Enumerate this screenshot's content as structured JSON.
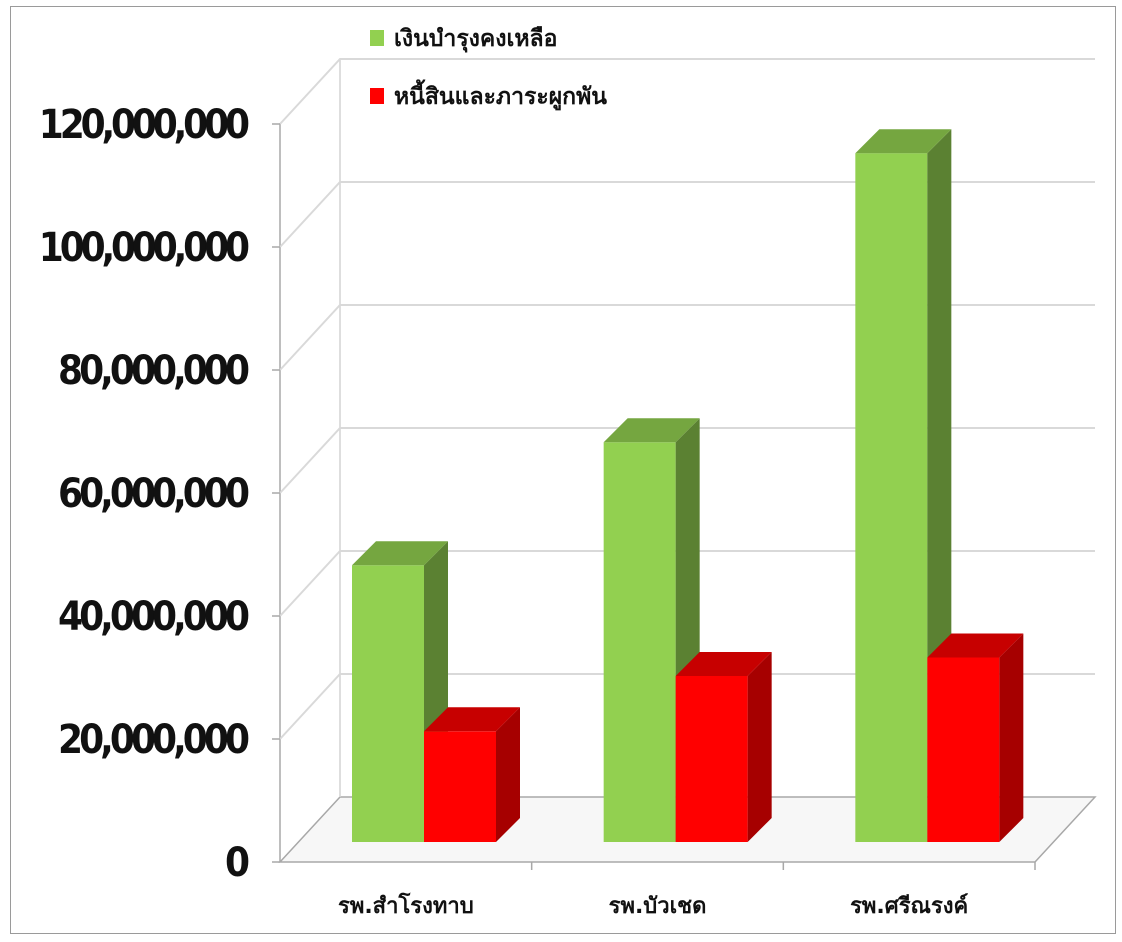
{
  "chart_data": {
    "type": "bar",
    "three_d": true,
    "categories": [
      "รพ.สำโรงทาบ",
      "รพ.บัวเชด",
      "รพ.ศรีณรงค์"
    ],
    "series": [
      {
        "name": "เงินบำรุงคงเหลือ",
        "values": [
          45000000,
          65000000,
          112000000
        ],
        "color": "#92d050"
      },
      {
        "name": "หนี้สินและภาระผูกพัน",
        "values": [
          18000000,
          27000000,
          30000000
        ],
        "color": "#ff0000"
      }
    ],
    "y_ticks": [
      "0",
      "20,000,000",
      "40,000,000",
      "60,000,000",
      "80,000,000",
      "100,000,000",
      "120,000,000"
    ],
    "ylim": [
      0,
      120000000
    ],
    "grid": true,
    "legend_position": "top-center"
  }
}
